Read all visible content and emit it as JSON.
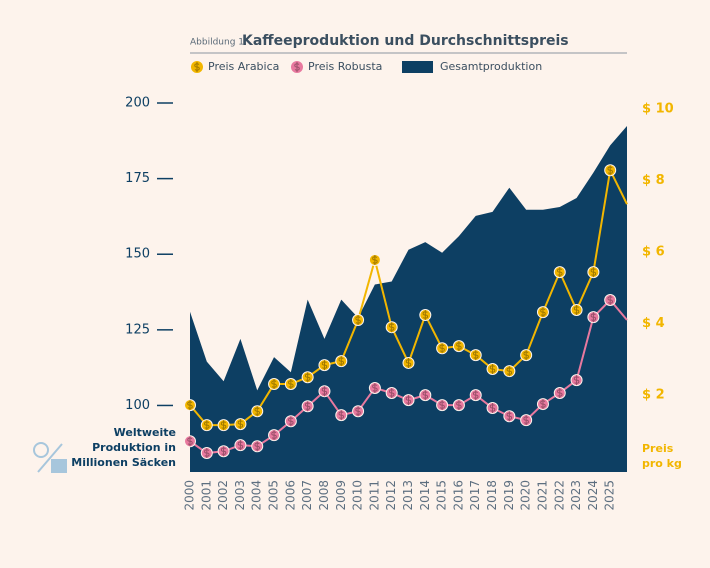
{
  "chart_data": {
    "type": "area",
    "figure_label": "Abbildung 1:",
    "title": "Kaffeeproduktion und Durchschnittspreis",
    "y_label": [
      "Weltweite",
      "Produktion in",
      "Millionen Säcken"
    ],
    "y2_label": [
      "Preis",
      "pro kg"
    ],
    "categories": [
      "2000",
      "2001",
      "2002",
      "2003",
      "2004",
      "2005",
      "2006",
      "2007",
      "2008",
      "2009",
      "2010",
      "2011",
      "2012",
      "2013",
      "2014",
      "2015",
      "2016",
      "2017",
      "2018",
      "2019",
      "2020",
      "2021",
      "2022",
      "2023",
      "2024",
      "2025",
      null
    ],
    "series": [
      {
        "name": "Gesamtproduktion",
        "type": "area",
        "axis": "y",
        "color": "#0d3f63",
        "values": [
          131,
          114.5,
          108,
          122,
          105,
          116,
          111,
          135,
          122,
          135,
          129,
          140,
          141,
          151.5,
          154,
          150.5,
          156,
          162.7,
          164,
          172,
          164.7,
          164.7,
          165.6,
          168.6,
          177,
          186,
          192.4
        ]
      },
      {
        "name": "Preis Arabica",
        "type": "line",
        "axis": "y2",
        "color": "#f2b600",
        "values": [
          1.72,
          1.16,
          1.16,
          1.19,
          1.55,
          2.31,
          2.31,
          2.5,
          2.84,
          2.95,
          4.1,
          5.78,
          3.9,
          2.9,
          4.24,
          3.31,
          3.37,
          3.12,
          2.73,
          2.67,
          3.12,
          4.32,
          5.44,
          4.38,
          5.44,
          8.29,
          7.34
        ]
      },
      {
        "name": "Preis Robusta",
        "type": "line",
        "axis": "y2",
        "color": "#e8799f",
        "values": [
          0.71,
          0.38,
          0.43,
          0.6,
          0.57,
          0.88,
          1.27,
          1.69,
          2.11,
          1.44,
          1.55,
          2.2,
          2.06,
          1.86,
          2.0,
          1.72,
          1.72,
          2.0,
          1.64,
          1.41,
          1.3,
          1.75,
          2.06,
          2.42,
          4.18,
          4.66,
          4.1
        ]
      }
    ],
    "ylim": [
      78,
      200
    ],
    "yticks": [
      100,
      125,
      150,
      175,
      200
    ],
    "y2lim": [
      -0.15,
      10.17
    ],
    "y2ticks": [
      {
        "value": 2,
        "label": "$ 2"
      },
      {
        "value": 4,
        "label": "$ 4"
      },
      {
        "value": 6,
        "label": "$ 6"
      },
      {
        "value": 8,
        "label": "$ 8"
      },
      {
        "value": 10,
        "label": "$ 10"
      }
    ]
  }
}
